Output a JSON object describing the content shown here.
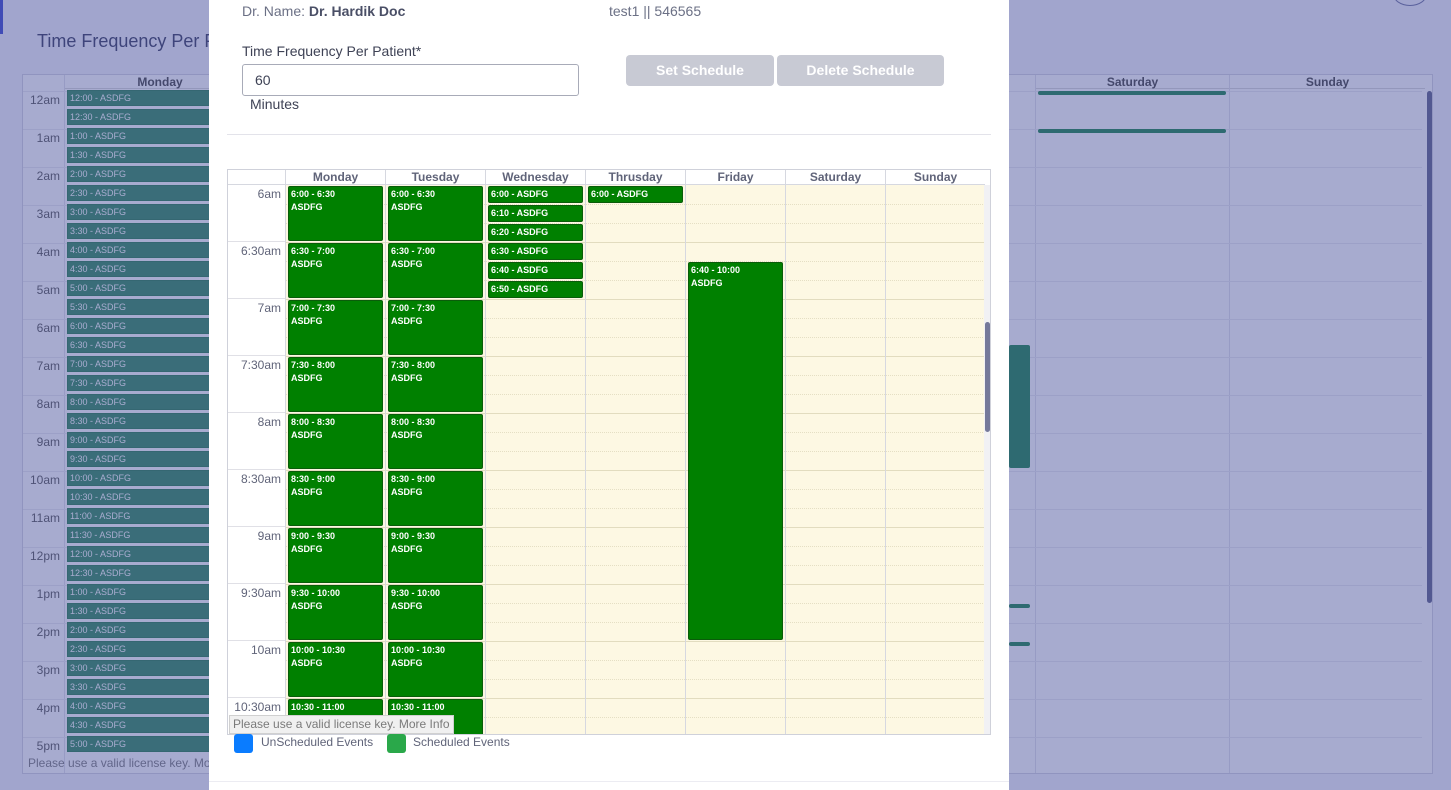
{
  "background": {
    "title": "Time Frequency Per P",
    "day_headers": [
      "Monday",
      "Saturday",
      "Sunday"
    ],
    "times": [
      "12am",
      "1am",
      "2am",
      "3am",
      "4am",
      "5am",
      "6am",
      "7am",
      "8am",
      "9am",
      "10am",
      "11am",
      "12pm",
      "1pm",
      "2pm",
      "3pm",
      "4pm",
      "5pm"
    ],
    "events": [
      "12:00 - ASDFG",
      "12:30 - ASDFG",
      "1:00 - ASDFG",
      "1:30 - ASDFG",
      "2:00 - ASDFG",
      "2:30 - ASDFG",
      "3:00 - ASDFG",
      "3:30 - ASDFG",
      "4:00 - ASDFG",
      "4:30 - ASDFG",
      "5:00 - ASDFG",
      "5:30 - ASDFG",
      "6:00 - ASDFG",
      "6:30 - ASDFG",
      "7:00 - ASDFG",
      "7:30 - ASDFG",
      "8:00 - ASDFG",
      "8:30 - ASDFG",
      "9:00 - ASDFG",
      "9:30 - ASDFG",
      "10:00 - ASDFG",
      "10:30 - ASDFG",
      "11:00 - ASDFG",
      "11:30 - ASDFG",
      "12:00 - ASDFG",
      "12:30 - ASDFG",
      "1:00 - ASDFG",
      "1:30 - ASDFG",
      "2:00 - ASDFG",
      "2:30 - ASDFG",
      "3:00 - ASDFG",
      "3:30 - ASDFG",
      "4:00 - ASDFG",
      "4:30 - ASDFG",
      "5:00 - ASDFG"
    ],
    "license": "Please use a valid license key. More Info"
  },
  "modal": {
    "doctor_label": "Dr. Name:",
    "doctor_name": "Dr. Hardik Doc",
    "patient_info": "test1 || 546565",
    "freq_label": "Time Frequency Per Patient*",
    "freq_value": "60",
    "minutes_label": "Minutes",
    "set_button": "Set Schedule",
    "delete_button": "Delete Schedule"
  },
  "scheduler": {
    "days": [
      "Monday",
      "Tuesday",
      "Wednesday",
      "Thrusday",
      "Friday",
      "Saturday",
      "Sunday"
    ],
    "time_labels": [
      "6am",
      "6:30am",
      "7am",
      "7:30am",
      "8am",
      "8:30am",
      "9am",
      "9:30am",
      "10am",
      "10:30am"
    ],
    "view_start_minutes": 360,
    "minutes_per_block": 30,
    "events": [
      {
        "day": 0,
        "start": 360,
        "end": 390,
        "time": "6:00 - 6:30",
        "title": "ASDFG"
      },
      {
        "day": 0,
        "start": 390,
        "end": 420,
        "time": "6:30 - 7:00",
        "title": "ASDFG"
      },
      {
        "day": 0,
        "start": 420,
        "end": 450,
        "time": "7:00 - 7:30",
        "title": "ASDFG"
      },
      {
        "day": 0,
        "start": 450,
        "end": 480,
        "time": "7:30 - 8:00",
        "title": "ASDFG"
      },
      {
        "day": 0,
        "start": 480,
        "end": 510,
        "time": "8:00 - 8:30",
        "title": "ASDFG"
      },
      {
        "day": 0,
        "start": 510,
        "end": 540,
        "time": "8:30 - 9:00",
        "title": "ASDFG"
      },
      {
        "day": 0,
        "start": 540,
        "end": 570,
        "time": "9:00 - 9:30",
        "title": "ASDFG"
      },
      {
        "day": 0,
        "start": 570,
        "end": 600,
        "time": "9:30 - 10:00",
        "title": "ASDFG"
      },
      {
        "day": 0,
        "start": 600,
        "end": 630,
        "time": "10:00 - 10:30",
        "title": "ASDFG"
      },
      {
        "day": 0,
        "start": 630,
        "end": 660,
        "time": "10:30 - 11:00",
        "title": "ASDFG"
      },
      {
        "day": 1,
        "start": 360,
        "end": 390,
        "time": "6:00 - 6:30",
        "title": "ASDFG"
      },
      {
        "day": 1,
        "start": 390,
        "end": 420,
        "time": "6:30 - 7:00",
        "title": "ASDFG"
      },
      {
        "day": 1,
        "start": 420,
        "end": 450,
        "time": "7:00 - 7:30",
        "title": "ASDFG"
      },
      {
        "day": 1,
        "start": 450,
        "end": 480,
        "time": "7:30 - 8:00",
        "title": "ASDFG"
      },
      {
        "day": 1,
        "start": 480,
        "end": 510,
        "time": "8:00 - 8:30",
        "title": "ASDFG"
      },
      {
        "day": 1,
        "start": 510,
        "end": 540,
        "time": "8:30 - 9:00",
        "title": "ASDFG"
      },
      {
        "day": 1,
        "start": 540,
        "end": 570,
        "time": "9:00 - 9:30",
        "title": "ASDFG"
      },
      {
        "day": 1,
        "start": 570,
        "end": 600,
        "time": "9:30 - 10:00",
        "title": "ASDFG"
      },
      {
        "day": 1,
        "start": 600,
        "end": 630,
        "time": "10:00 - 10:30",
        "title": "ASDFG"
      },
      {
        "day": 1,
        "start": 630,
        "end": 660,
        "time": "10:30 - 11:00",
        "title": "ASDFG"
      },
      {
        "day": 2,
        "start": 360,
        "end": 370,
        "time": "",
        "title": "6:00 - ASDFG"
      },
      {
        "day": 2,
        "start": 370,
        "end": 380,
        "time": "",
        "title": "6:10 - ASDFG"
      },
      {
        "day": 2,
        "start": 380,
        "end": 390,
        "time": "",
        "title": "6:20 - ASDFG"
      },
      {
        "day": 2,
        "start": 390,
        "end": 400,
        "time": "",
        "title": "6:30 - ASDFG"
      },
      {
        "day": 2,
        "start": 400,
        "end": 410,
        "time": "",
        "title": "6:40 - ASDFG"
      },
      {
        "day": 2,
        "start": 410,
        "end": 420,
        "time": "",
        "title": "6:50 - ASDFG"
      },
      {
        "day": 3,
        "start": 360,
        "end": 370,
        "time": "",
        "title": "6:00 - ASDFG"
      },
      {
        "day": 4,
        "start": 400,
        "end": 600,
        "time": "6:40 - 10:00",
        "title": "ASDFG"
      }
    ],
    "license": "Please use a valid license key. More Info"
  },
  "legend": {
    "unscheduled": {
      "label": "UnScheduled Events",
      "color": "#0a7cff"
    },
    "scheduled": {
      "label": "Scheduled Events",
      "color": "#2aa84a"
    }
  },
  "colors": {
    "event": "#008000",
    "grid_background": "#fdf8e3",
    "button_disabled": "#c8cad4"
  }
}
